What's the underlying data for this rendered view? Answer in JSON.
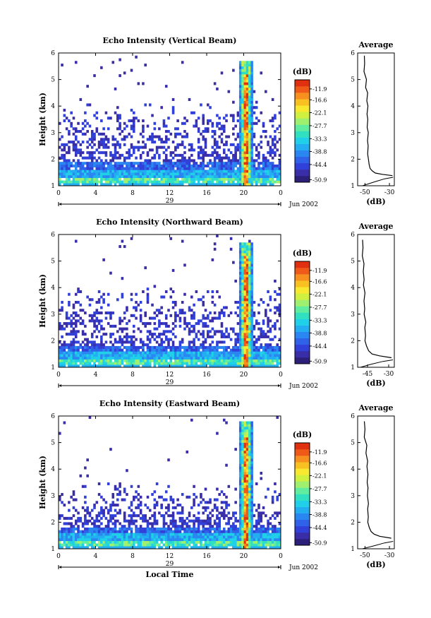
{
  "figure": {
    "xlabel": "Local Time",
    "date_label": "Jun 2002",
    "day_label": "29"
  },
  "colors": {
    "scale": [
      "#2b1f7a",
      "#3a2ea8",
      "#3040d8",
      "#2f62e8",
      "#2a86f0",
      "#22aef0",
      "#1fd0e8",
      "#30e0c0",
      "#60eda0",
      "#a0f070",
      "#d0f040",
      "#f8e830",
      "#f8c020",
      "#f89020",
      "#f05a18",
      "#e03010"
    ]
  },
  "chart_data": [
    {
      "type": "heatmap",
      "title": "Echo Intensity (Vertical Beam)",
      "ylabel": "Height (km)",
      "x_ticks": [
        "0",
        "4",
        "8",
        "12",
        "16",
        "20",
        "0"
      ],
      "xlim": [
        0,
        24
      ],
      "y_ticks": [
        "1",
        "2",
        "3",
        "4",
        "5",
        "6"
      ],
      "ylim": [
        1,
        6
      ],
      "colorbar": {
        "unit": "(dB)",
        "labels": [
          "-11.9",
          "-16.6",
          "-22.1",
          "-27.7",
          "-33.3",
          "-38.8",
          "-44.4",
          "-50.9"
        ],
        "range": [
          -52,
          -8
        ]
      },
      "profile": {
        "title": "Average",
        "xlabel": "(dB)",
        "x_ticks": [
          "-50",
          "-30"
        ],
        "xlim": [
          -56,
          -26
        ],
        "points": [
          [
            -50.5,
            5.9
          ],
          [
            -50.3,
            5.6
          ],
          [
            -50.8,
            5.3
          ],
          [
            -48.8,
            5.0
          ],
          [
            -49.5,
            4.7
          ],
          [
            -47.8,
            4.5
          ],
          [
            -48.5,
            4.2
          ],
          [
            -47.6,
            4.0
          ],
          [
            -48.3,
            3.7
          ],
          [
            -47.7,
            3.5
          ],
          [
            -48.2,
            3.2
          ],
          [
            -47.3,
            3.0
          ],
          [
            -47.9,
            2.7
          ],
          [
            -47.4,
            2.5
          ],
          [
            -47.8,
            2.2
          ],
          [
            -47.2,
            2.0
          ],
          [
            -46.6,
            1.8
          ],
          [
            -45.8,
            1.65
          ],
          [
            -43.8,
            1.55
          ],
          [
            -41.5,
            1.48
          ],
          [
            -36.0,
            1.43
          ],
          [
            -27.5,
            1.38
          ]
        ],
        "second_points": [
          [
            -52.0,
            1.0
          ],
          [
            -42.0,
            1.15
          ],
          [
            -34.0,
            1.26
          ],
          [
            -27.0,
            1.32
          ]
        ]
      },
      "echo": {
        "base_top": 1.95,
        "burst_top": 5.75,
        "scatter_top": 4.1
      }
    },
    {
      "type": "heatmap",
      "title": "Echo Intensity (Northward Beam)",
      "ylabel": "Height (km)",
      "x_ticks": [
        "0",
        "4",
        "8",
        "12",
        "16",
        "20",
        "0"
      ],
      "xlim": [
        0,
        24
      ],
      "y_ticks": [
        "1",
        "2",
        "3",
        "4",
        "5",
        "6"
      ],
      "ylim": [
        1,
        6
      ],
      "colorbar": {
        "unit": "(dB)",
        "labels": [
          "-11.9",
          "-16.6",
          "-22.1",
          "-27.7",
          "-33.3",
          "-38.8",
          "-44.4",
          "-50.9"
        ],
        "range": [
          -52,
          -8
        ]
      },
      "profile": {
        "title": "Average",
        "xlabel": "(dB)",
        "x_ticks": [
          "-45",
          "-30"
        ],
        "xlim": [
          -52,
          -26
        ],
        "points": [
          [
            -48.5,
            5.8
          ],
          [
            -48.2,
            5.5
          ],
          [
            -48.7,
            5.2
          ],
          [
            -47.5,
            4.9
          ],
          [
            -48.0,
            4.6
          ],
          [
            -47.4,
            4.3
          ],
          [
            -47.9,
            4.1
          ],
          [
            -46.8,
            3.8
          ],
          [
            -47.5,
            3.5
          ],
          [
            -47.0,
            3.2
          ],
          [
            -47.4,
            3.0
          ],
          [
            -46.2,
            2.7
          ],
          [
            -46.9,
            2.5
          ],
          [
            -46.4,
            2.2
          ],
          [
            -46.8,
            2.0
          ],
          [
            -45.7,
            1.8
          ],
          [
            -44.2,
            1.62
          ],
          [
            -41.8,
            1.5
          ],
          [
            -36.5,
            1.43
          ],
          [
            -28.0,
            1.36
          ]
        ],
        "second_points": [
          [
            -50.0,
            1.0
          ],
          [
            -42.0,
            1.12
          ],
          [
            -34.0,
            1.22
          ],
          [
            -27.0,
            1.28
          ]
        ]
      },
      "echo": {
        "base_top": 1.85,
        "burst_top": 5.75,
        "scatter_top": 4.0
      }
    },
    {
      "type": "heatmap",
      "title": "Echo Intensity (Eastward Beam)",
      "ylabel": "Height (km)",
      "x_ticks": [
        "0",
        "4",
        "8",
        "12",
        "16",
        "20",
        "0"
      ],
      "xlim": [
        0,
        24
      ],
      "y_ticks": [
        "1",
        "2",
        "3",
        "4",
        "5",
        "6"
      ],
      "ylim": [
        1,
        6
      ],
      "colorbar": {
        "unit": "(dB)",
        "labels": [
          "-11.9",
          "-16.6",
          "-22.1",
          "-27.7",
          "-33.3",
          "-38.8",
          "-44.4",
          "-50.9"
        ],
        "range": [
          -52,
          -8
        ]
      },
      "profile": {
        "title": "Average",
        "xlabel": "(dB)",
        "x_ticks": [
          "-50",
          "-30"
        ],
        "xlim": [
          -56,
          -26
        ],
        "points": [
          [
            -50.5,
            5.8
          ],
          [
            -50.0,
            5.5
          ],
          [
            -50.6,
            5.2
          ],
          [
            -48.5,
            4.9
          ],
          [
            -49.2,
            4.6
          ],
          [
            -47.8,
            4.3
          ],
          [
            -48.4,
            4.1
          ],
          [
            -47.6,
            3.8
          ],
          [
            -48.2,
            3.5
          ],
          [
            -47.5,
            3.3
          ],
          [
            -48.0,
            3.0
          ],
          [
            -47.2,
            2.7
          ],
          [
            -47.8,
            2.5
          ],
          [
            -47.3,
            2.2
          ],
          [
            -47.7,
            2.0
          ],
          [
            -46.5,
            1.8
          ],
          [
            -45.0,
            1.65
          ],
          [
            -42.5,
            1.55
          ],
          [
            -38.0,
            1.47
          ],
          [
            -28.5,
            1.4
          ]
        ],
        "second_points": [
          [
            -52.0,
            1.0
          ],
          [
            -42.0,
            1.12
          ],
          [
            -34.0,
            1.22
          ],
          [
            -27.0,
            1.28
          ]
        ]
      },
      "echo": {
        "base_top": 1.85,
        "burst_top": 5.8,
        "scatter_top": 3.5
      }
    }
  ]
}
